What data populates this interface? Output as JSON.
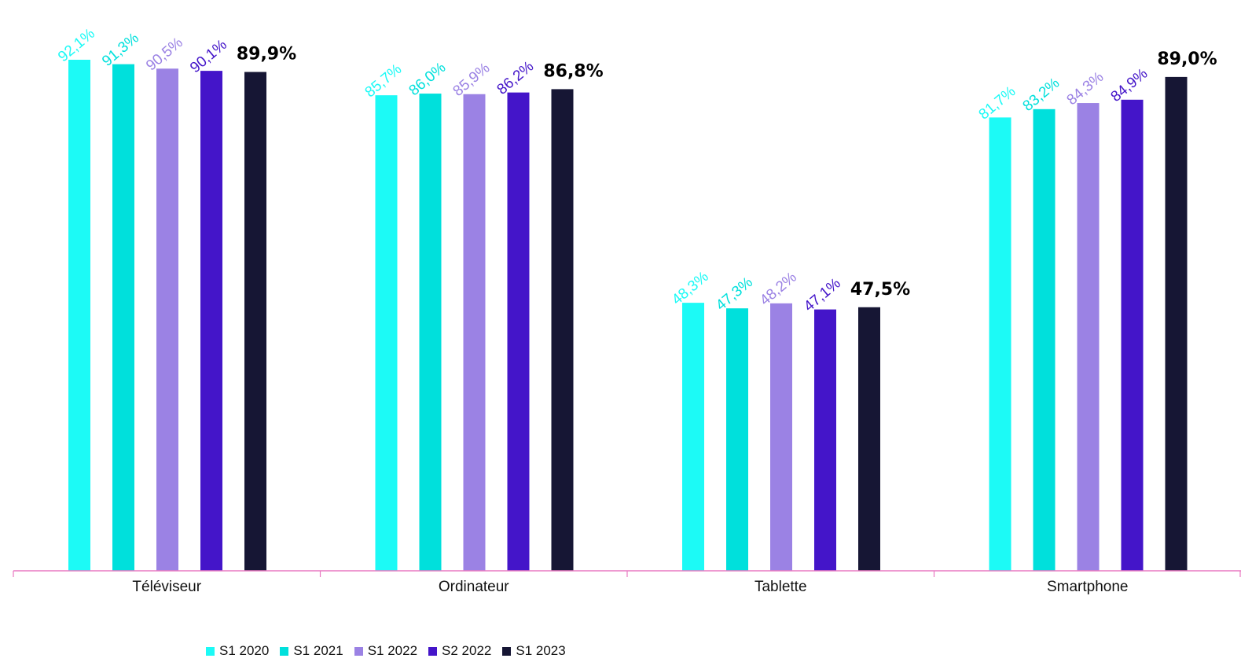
{
  "chart_data": {
    "type": "bar",
    "categories": [
      "Téléviseur",
      "Ordinateur",
      "Tablette",
      "Smartphone"
    ],
    "series": [
      {
        "name": "S1 2020",
        "color": "#1CFAF6",
        "values": [
          92.1,
          85.7,
          48.3,
          81.7
        ],
        "labels": [
          "92,1%",
          "85,7%",
          "48,3%",
          "81,7%"
        ]
      },
      {
        "name": "S1 2021",
        "color": "#00E0DC",
        "values": [
          91.3,
          86.0,
          47.3,
          83.2
        ],
        "labels": [
          "91,3%",
          "86,0%",
          "47,3%",
          "83,2%"
        ]
      },
      {
        "name": "S1 2022",
        "color": "#9B82E4",
        "values": [
          90.5,
          85.9,
          48.2,
          84.3
        ],
        "labels": [
          "90,5%",
          "85,9%",
          "48,2%",
          "84,3%"
        ]
      },
      {
        "name": "S2 2022",
        "color": "#4415C9",
        "values": [
          90.1,
          86.2,
          47.1,
          84.9
        ],
        "labels": [
          "90,1%",
          "86,2%",
          "47,1%",
          "84,9%"
        ]
      },
      {
        "name": "S1 2023",
        "color": "#161634",
        "values": [
          89.9,
          86.8,
          47.5,
          89.0
        ],
        "labels": [
          "89,9%",
          "86,8%",
          "47,5%",
          "89,0%"
        ],
        "emphasis": true
      }
    ],
    "title": "",
    "xlabel": "",
    "ylabel": "",
    "ylim": [
      0,
      100
    ],
    "grid": false,
    "legend_position": "bottom",
    "axis_color": "#E879C2",
    "label_text_color_emphasis": "#000000"
  }
}
